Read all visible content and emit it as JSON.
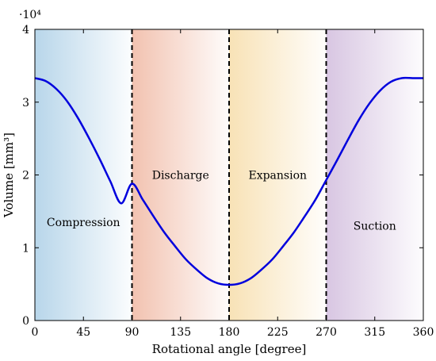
{
  "chart_data": {
    "type": "line",
    "title": "",
    "xlabel": "Rotational angle [degree]",
    "ylabel": "Volume [mm³]",
    "y_multiplier_label": "·10⁴",
    "xlim": [
      0,
      360
    ],
    "ylim": [
      0,
      4
    ],
    "x_ticks": [
      0,
      45,
      90,
      135,
      180,
      225,
      270,
      315,
      360
    ],
    "y_ticks": [
      0,
      1,
      2,
      3,
      4
    ],
    "grid": false,
    "series": [
      {
        "color": "#0000dd",
        "x": [
          0,
          10,
          20,
          30,
          40,
          50,
          60,
          70,
          80,
          90,
          100,
          110,
          120,
          130,
          140,
          150,
          160,
          170,
          180,
          190,
          200,
          210,
          220,
          230,
          240,
          250,
          260,
          270,
          280,
          290,
          300,
          310,
          320,
          330,
          340,
          350,
          360
        ],
        "y": [
          3.33,
          3.29,
          3.18,
          3.01,
          2.78,
          2.51,
          2.22,
          1.91,
          1.61,
          1.88,
          1.66,
          1.43,
          1.21,
          1.02,
          0.84,
          0.7,
          0.58,
          0.51,
          0.49,
          0.51,
          0.58,
          0.7,
          0.84,
          1.02,
          1.21,
          1.43,
          1.66,
          1.93,
          2.2,
          2.48,
          2.75,
          2.98,
          3.16,
          3.28,
          3.33,
          3.33,
          3.33
        ]
      }
    ],
    "vlines": [
      90,
      180,
      270
    ],
    "phases": [
      {
        "label": "Compression",
        "x_start": 0,
        "x_end": 90,
        "label_y": 1.35,
        "color": "#b8d6ea"
      },
      {
        "label": "Discharge",
        "x_start": 90,
        "x_end": 180,
        "label_y": 2.0,
        "color": "#f2c2b0"
      },
      {
        "label": "Expansion",
        "x_start": 180,
        "x_end": 270,
        "label_y": 2.0,
        "color": "#f8e2b6"
      },
      {
        "label": "Suction",
        "x_start": 270,
        "x_end": 360,
        "label_y": 1.3,
        "color": "#d8c6e2"
      }
    ]
  }
}
